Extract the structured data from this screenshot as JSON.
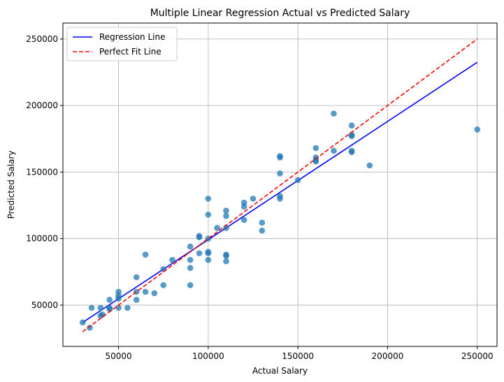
{
  "chart_data": {
    "type": "scatter",
    "title": "Multiple Linear Regression Actual vs Predicted Salary",
    "xlabel": "Actual Salary",
    "ylabel": "Predicted Salary",
    "xlim": [
      19000,
      261000
    ],
    "ylim": [
      19000,
      262000
    ],
    "xticks": [
      50000,
      100000,
      150000,
      200000,
      250000
    ],
    "yticks": [
      50000,
      100000,
      150000,
      200000,
      250000
    ],
    "grid": true,
    "legend_position": "top-left",
    "colors": {
      "scatter": "#1f77b4",
      "regression": "#0000ff",
      "perfect_fit": "#ff0000",
      "grid": "#b0b0b0"
    },
    "series": [
      {
        "kind": "scatter",
        "points": [
          [
            30000,
            37000
          ],
          [
            34000,
            33000
          ],
          [
            35000,
            48000
          ],
          [
            40000,
            48000
          ],
          [
            40000,
            42000
          ],
          [
            41000,
            43000
          ],
          [
            45000,
            54000
          ],
          [
            45000,
            48000
          ],
          [
            45000,
            47000
          ],
          [
            50000,
            60000
          ],
          [
            50000,
            57000
          ],
          [
            50000,
            55000
          ],
          [
            50000,
            48000
          ],
          [
            55000,
            48000
          ],
          [
            60000,
            71000
          ],
          [
            60000,
            60000
          ],
          [
            60000,
            54000
          ],
          [
            65000,
            88000
          ],
          [
            65000,
            60000
          ],
          [
            70000,
            59000
          ],
          [
            75000,
            77000
          ],
          [
            75000,
            65000
          ],
          [
            80000,
            84000
          ],
          [
            90000,
            94000
          ],
          [
            90000,
            84000
          ],
          [
            90000,
            78000
          ],
          [
            90000,
            65000
          ],
          [
            95000,
            102000
          ],
          [
            95000,
            101000
          ],
          [
            95000,
            89000
          ],
          [
            100000,
            130000
          ],
          [
            100000,
            118000
          ],
          [
            100000,
            100000
          ],
          [
            100000,
            90000
          ],
          [
            100000,
            89000
          ],
          [
            100000,
            84000
          ],
          [
            105000,
            108000
          ],
          [
            110000,
            121000
          ],
          [
            110000,
            117000
          ],
          [
            110000,
            108000
          ],
          [
            110000,
            88000
          ],
          [
            110000,
            87000
          ],
          [
            110000,
            83000
          ],
          [
            120000,
            127000
          ],
          [
            120000,
            124000
          ],
          [
            120000,
            114000
          ],
          [
            125000,
            130000
          ],
          [
            130000,
            112000
          ],
          [
            130000,
            106000
          ],
          [
            140000,
            162000
          ],
          [
            140000,
            161000
          ],
          [
            140000,
            149000
          ],
          [
            140000,
            132000
          ],
          [
            140000,
            130000
          ],
          [
            150000,
            144000
          ],
          [
            160000,
            168000
          ],
          [
            160000,
            161000
          ],
          [
            160000,
            159000
          ],
          [
            160000,
            158000
          ],
          [
            170000,
            194000
          ],
          [
            170000,
            166000
          ],
          [
            180000,
            185000
          ],
          [
            180000,
            178000
          ],
          [
            180000,
            177000
          ],
          [
            180000,
            166000
          ],
          [
            180000,
            165000
          ],
          [
            190000,
            155000
          ],
          [
            250000,
            182000
          ]
        ]
      },
      {
        "kind": "line",
        "name": "Regression Line",
        "x": [
          30000,
          250000
        ],
        "y": [
          37000,
          232500
        ]
      },
      {
        "kind": "line",
        "name": "Perfect Fit Line",
        "style": "dashed",
        "x": [
          30000,
          250000
        ],
        "y": [
          30000,
          250000
        ]
      }
    ]
  }
}
